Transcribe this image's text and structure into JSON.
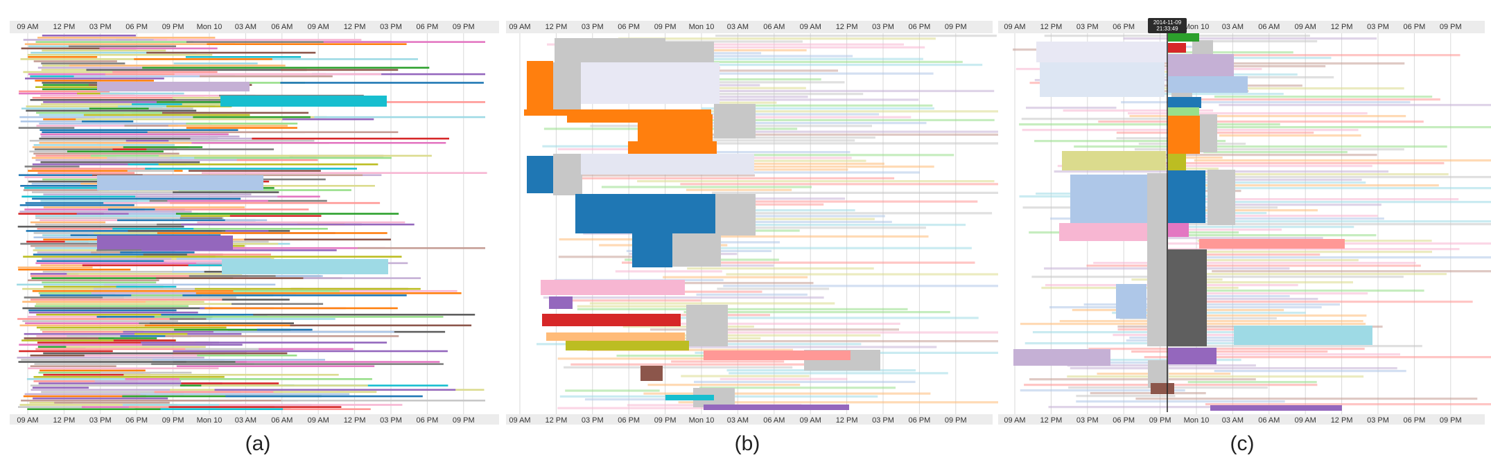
{
  "chart_data": [
    {
      "type": "timeline",
      "caption": "(a)",
      "style": "dense many-color task bars",
      "x_tick_labels": [
        "09 AM",
        "12 PM",
        "03 PM",
        "06 PM",
        "09 PM",
        "Mon 10",
        "03 AM",
        "06 AM",
        "09 AM",
        "12 PM",
        "03 PM",
        "06 PM",
        "09 PM"
      ],
      "grid": true
    },
    {
      "type": "timeline",
      "caption": "(b)",
      "style": "aggregated blocks with faded context bars",
      "x_tick_labels": [
        "09 AM",
        "12 PM",
        "03 PM",
        "06 PM",
        "09 PM",
        "Mon 10",
        "03 AM",
        "06 AM",
        "09 AM",
        "12 PM",
        "03 PM",
        "06 PM",
        "09 PM"
      ],
      "grid": true
    },
    {
      "type": "timeline",
      "caption": "(c)",
      "style": "aggregated blocks with time cursor",
      "x_tick_labels": [
        "09 AM",
        "12 PM",
        "03 PM",
        "06 PM",
        "09 PM",
        "Mon 10",
        "03 AM",
        "06 AM",
        "09 AM",
        "12 PM",
        "03 PM",
        "06 PM",
        "09 PM"
      ],
      "grid": true,
      "cursor": {
        "date": "2014-11-09",
        "time": "21:33:49"
      }
    }
  ],
  "palette": [
    "#1f77b4",
    "#ff7f0e",
    "#2ca02c",
    "#d62728",
    "#9467bd",
    "#8c564b",
    "#e377c2",
    "#7f7f7f",
    "#bcbd22",
    "#17becf",
    "#aec7e8",
    "#ffbb78",
    "#98df8a",
    "#ff9896",
    "#c5b0d5",
    "#c49c94",
    "#f7b6d2",
    "#c7c7c7",
    "#dbdb8d",
    "#9edae5",
    "#5f5f5f"
  ]
}
